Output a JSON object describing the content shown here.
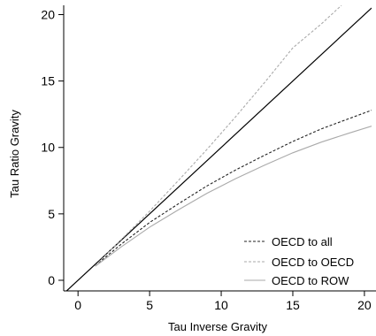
{
  "chart_data": {
    "type": "line",
    "xlabel": "Tau Inverse Gravity",
    "ylabel": "Tau Ratio Gravity",
    "xlim": [
      -1,
      20.5
    ],
    "ylim": [
      -0.8,
      20.7
    ],
    "xticks": [
      0,
      5,
      10,
      15,
      20
    ],
    "yticks": [
      0,
      5,
      10,
      15,
      20
    ],
    "tick_labels_x": [
      "0",
      "5",
      "10",
      "15",
      "20"
    ],
    "tick_labels_y": [
      "0",
      "5",
      "10",
      "15",
      "20"
    ],
    "grid": false,
    "legend_position": "bottom-right",
    "reference_line": {
      "x": [
        -1,
        20.5
      ],
      "y": [
        -1,
        20.5
      ],
      "color": "#000000"
    },
    "series": [
      {
        "name": "OECD to all",
        "style": "dashed",
        "color": "#222222",
        "x": [
          1.2,
          3,
          5,
          7,
          9,
          11,
          13,
          15,
          17,
          19,
          20.5
        ],
        "y": [
          1.1,
          2.7,
          4.35,
          5.75,
          7.1,
          8.3,
          9.4,
          10.45,
          11.4,
          12.2,
          12.8
        ]
      },
      {
        "name": "OECD to OECD",
        "style": "dashed",
        "color": "#aaaaaa",
        "x": [
          1.2,
          3,
          5,
          7,
          9,
          11,
          13,
          15,
          17,
          18.4
        ],
        "y": [
          1.1,
          3.05,
          5.2,
          7.5,
          9.85,
          12.3,
          14.85,
          17.5,
          19.3,
          20.7
        ]
      },
      {
        "name": "OECD to ROW",
        "style": "solid",
        "color": "#aaaaaa",
        "x": [
          1.2,
          3,
          5,
          7,
          9,
          11,
          13,
          15,
          17,
          19,
          20.5
        ],
        "y": [
          1.05,
          2.5,
          4.0,
          5.3,
          6.55,
          7.65,
          8.65,
          9.6,
          10.4,
          11.1,
          11.6
        ]
      }
    ]
  }
}
